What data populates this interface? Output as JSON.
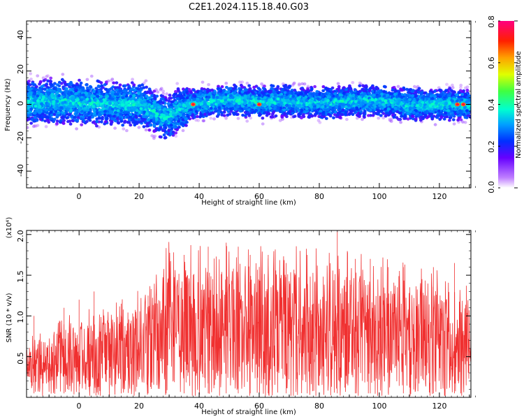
{
  "title": "C2E1.2024.115.18.40.G03",
  "chart_data": [
    {
      "type": "heatmap",
      "title": "C2E1.2024.115.18.40.G03",
      "xlabel": "Height of straight line (km)",
      "ylabel": "Frequency (Hz)",
      "xlim": [
        -17.5,
        130.5
      ],
      "ylim": [
        -50,
        50
      ],
      "xticks": [
        "0",
        "20",
        "40",
        "60",
        "80",
        "100",
        "120"
      ],
      "yticks": [
        "40",
        "20",
        "0",
        "-20",
        "-40"
      ],
      "colorbar": {
        "label": "Normalized spectral amplitude",
        "range": [
          0,
          0.8
        ],
        "ticks": [
          "0.0",
          "0.2",
          "0.4",
          "0.6",
          "0.8"
        ]
      },
      "band_center": [
        [
          -17,
          1
        ],
        [
          -10,
          2
        ],
        [
          -5,
          2
        ],
        [
          0,
          1
        ],
        [
          5,
          1
        ],
        [
          10,
          0
        ],
        [
          15,
          0
        ],
        [
          20,
          0
        ],
        [
          23,
          -2
        ],
        [
          26,
          -6
        ],
        [
          29,
          -8
        ],
        [
          32,
          -5
        ],
        [
          35,
          -1
        ],
        [
          38,
          0
        ],
        [
          45,
          2
        ],
        [
          50,
          3
        ],
        [
          55,
          2
        ],
        [
          60,
          1
        ],
        [
          65,
          2
        ],
        [
          70,
          2
        ],
        [
          75,
          1
        ],
        [
          80,
          1
        ],
        [
          85,
          1
        ],
        [
          90,
          2
        ],
        [
          95,
          2
        ],
        [
          100,
          2
        ],
        [
          105,
          1
        ],
        [
          110,
          0
        ],
        [
          115,
          0
        ],
        [
          120,
          0
        ],
        [
          125,
          0
        ],
        [
          130,
          0
        ]
      ],
      "peaks": [
        [
          38,
          0
        ],
        [
          60,
          0
        ],
        [
          126,
          0
        ],
        [
          128,
          0
        ]
      ],
      "grid": false
    },
    {
      "type": "line",
      "xlabel": "Height of straight line (km)",
      "ylabel": "SNR (10 * v/v)",
      "y_multiplier": "(x10⁴)",
      "xlim": [
        -17.5,
        130.5
      ],
      "ylim": [
        0,
        2.05
      ],
      "xticks": [
        "0",
        "20",
        "40",
        "60",
        "80",
        "100",
        "120"
      ],
      "yticks": [
        "0.5",
        "1.0",
        "1.5",
        "2.0"
      ],
      "series": [
        {
          "color": "#f03030",
          "envelope_max": [
            [
              -17,
              0.6
            ],
            [
              -10,
              0.75
            ],
            [
              0,
              0.9
            ],
            [
              10,
              0.95
            ],
            [
              20,
              1.1
            ],
            [
              25,
              1.3
            ],
            [
              30,
              1.6
            ],
            [
              40,
              1.55
            ],
            [
              50,
              1.55
            ],
            [
              60,
              1.55
            ],
            [
              70,
              1.55
            ],
            [
              80,
              1.55
            ],
            [
              85,
              1.6
            ],
            [
              90,
              1.5
            ],
            [
              100,
              1.45
            ],
            [
              110,
              1.4
            ],
            [
              120,
              1.3
            ],
            [
              130,
              1.2
            ]
          ],
          "spikes": [
            [
              -15,
              1.0
            ],
            [
              -5,
              1.1
            ],
            [
              0,
              1.2
            ],
            [
              5,
              1.3
            ],
            [
              14,
              1.15
            ],
            [
              23,
              1.25
            ],
            [
              29,
              1.8
            ],
            [
              35,
              1.75
            ],
            [
              43,
              1.85
            ],
            [
              49,
              1.9
            ],
            [
              53,
              1.85
            ],
            [
              57,
              1.75
            ],
            [
              63,
              1.75
            ],
            [
              69,
              1.65
            ],
            [
              76,
              1.75
            ],
            [
              86,
              2.05
            ],
            [
              92,
              1.7
            ],
            [
              97,
              1.7
            ],
            [
              103,
              1.6
            ],
            [
              108,
              1.6
            ],
            [
              118,
              1.6
            ],
            [
              125,
              1.65
            ]
          ]
        }
      ],
      "grid": false
    }
  ]
}
